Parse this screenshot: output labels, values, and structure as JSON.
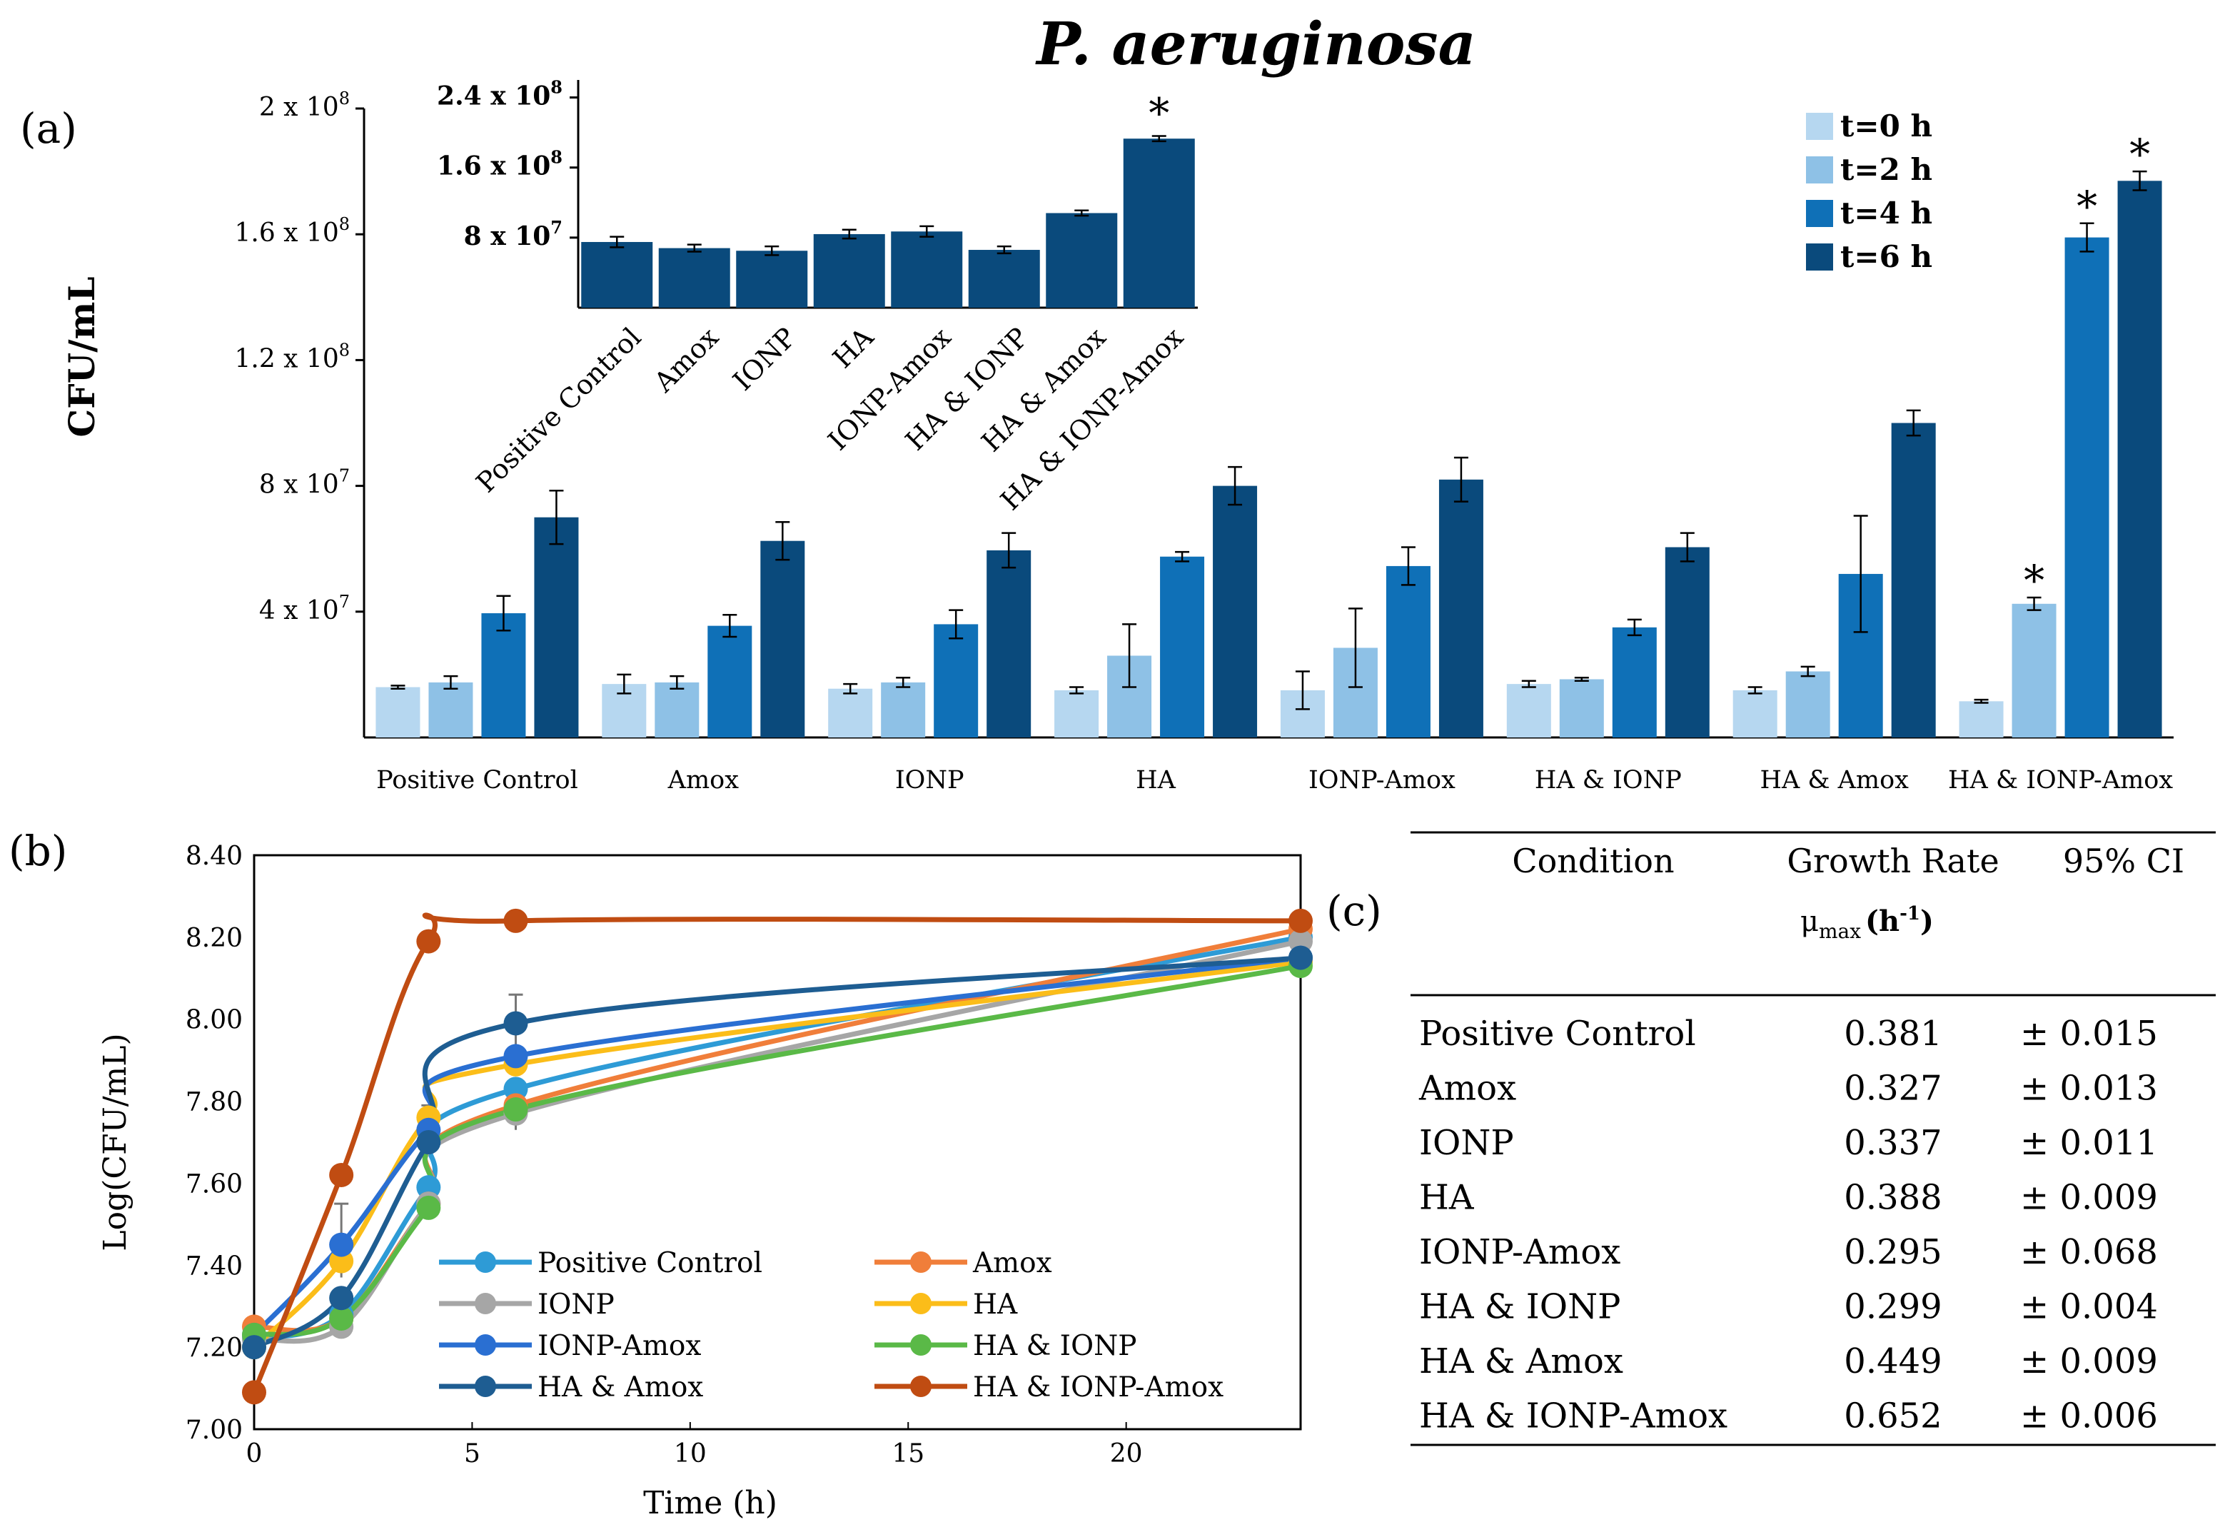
{
  "chart_data": [
    {
      "id": "a",
      "type": "bar",
      "title": "P. aeruginosa",
      "panel_label": "(a)",
      "ylabel": "CFU/mL",
      "ylim": [
        0,
        200000000
      ],
      "yticks": [
        {
          "value": 40000000,
          "mant": "4 x 10",
          "exp": "7"
        },
        {
          "value": 80000000,
          "mant": "8 x 10",
          "exp": "7"
        },
        {
          "value": 120000000,
          "mant": "1.2 x 10",
          "exp": "8"
        },
        {
          "value": 160000000,
          "mant": "1.6 x 10",
          "exp": "8"
        },
        {
          "value": 200000000,
          "mant": "2 x 10",
          "exp": "8"
        }
      ],
      "categories": [
        "Positive Control",
        "Amox",
        "IONP",
        "HA",
        "IONP-Amox",
        "HA & IONP",
        "HA & Amox",
        "HA & IONP-Amox"
      ],
      "series": [
        {
          "name": "t=0 h",
          "color": "#b6d7f0",
          "values": [
            16000000,
            17000000,
            15500000,
            15000000,
            15000000,
            17000000,
            15000000,
            11500000
          ],
          "errors": [
            500000,
            3000000,
            1500000,
            1000000,
            6000000,
            1000000,
            1000000,
            500000
          ],
          "stars": [
            false,
            false,
            false,
            false,
            false,
            false,
            false,
            false
          ]
        },
        {
          "name": "t=2 h",
          "color": "#8ec1e6",
          "values": [
            17500000,
            17500000,
            17500000,
            26000000,
            28500000,
            18500000,
            21000000,
            42500000
          ],
          "errors": [
            2000000,
            2000000,
            1500000,
            10000000,
            12500000,
            500000,
            1500000,
            2000000
          ],
          "stars": [
            false,
            false,
            false,
            false,
            false,
            false,
            false,
            true
          ]
        },
        {
          "name": "t=4 h",
          "color": "#0f70b7",
          "values": [
            39500000,
            35500000,
            36000000,
            57500000,
            54500000,
            35000000,
            52000000,
            159000000
          ],
          "errors": [
            5500000,
            3500000,
            4500000,
            1500000,
            6000000,
            2500000,
            18500000,
            4500000
          ],
          "stars": [
            false,
            false,
            false,
            false,
            false,
            false,
            false,
            true
          ]
        },
        {
          "name": "t=6 h",
          "color": "#0a4a7c",
          "values": [
            70000000,
            62500000,
            59500000,
            80000000,
            82000000,
            60500000,
            100000000,
            177000000
          ],
          "errors": [
            8500000,
            6000000,
            5500000,
            6000000,
            7000000,
            4500000,
            4000000,
            3000000
          ],
          "stars": [
            false,
            false,
            false,
            false,
            false,
            false,
            false,
            true
          ]
        }
      ],
      "legend": [
        "t=0 h",
        "t=2 h",
        "t=4 h",
        "t=6 h"
      ],
      "star_label": "*"
    },
    {
      "id": "a-inset",
      "type": "bar",
      "ylim": [
        0,
        260000000
      ],
      "yticks": [
        {
          "value": 80000000,
          "mant": "8 x 10",
          "exp": "7"
        },
        {
          "value": 160000000,
          "mant": "1.6 x 10",
          "exp": "8"
        },
        {
          "value": 240000000,
          "mant": "2.4 x 10",
          "exp": "8"
        }
      ],
      "categories": [
        "Positive Control",
        "Amox",
        "IONP",
        "HA",
        "IONP-Amox",
        "HA & IONP",
        "HA & Amox",
        "HA & IONP-Amox"
      ],
      "series": [
        {
          "name": "t=6 h",
          "color": "#0a4a7c",
          "values": [
            75000000,
            68000000,
            65000000,
            84000000,
            87000000,
            66000000,
            108000000,
            193000000
          ],
          "errors": [
            6000000,
            4000000,
            5000000,
            5000000,
            6000000,
            4000000,
            3000000,
            3000000
          ],
          "stars": [
            false,
            false,
            false,
            false,
            false,
            false,
            false,
            true
          ]
        }
      ],
      "star_label": "*"
    },
    {
      "id": "b",
      "type": "line",
      "panel_label": "(b)",
      "xlabel": "Time (h)",
      "ylabel": "Log(CFU/mL)",
      "xlim": [
        0,
        24
      ],
      "ylim": [
        7.0,
        8.4
      ],
      "xticks": [
        "0",
        "5",
        "10",
        "15",
        "20"
      ],
      "yticks": [
        "7.00",
        "7.20",
        "7.40",
        "7.60",
        "7.80",
        "8.00",
        "8.20",
        "8.40"
      ],
      "x": [
        0,
        2,
        4,
        6,
        24
      ],
      "series": [
        {
          "name": "Positive Control",
          "color": "#2e9bd6",
          "values": [
            7.22,
            7.28,
            7.59,
            7.83,
            8.2
          ]
        },
        {
          "name": "Amox",
          "color": "#f07e3a",
          "values": [
            7.25,
            7.27,
            7.55,
            7.79,
            8.22
          ]
        },
        {
          "name": "IONP",
          "color": "#a6a6a6",
          "values": [
            7.22,
            7.25,
            7.55,
            7.77,
            8.19
          ]
        },
        {
          "name": "HA",
          "color": "#fbbd19",
          "values": [
            7.2,
            7.41,
            7.76,
            7.89,
            8.14
          ]
        },
        {
          "name": "IONP-Amox",
          "color": "#2a6fd2",
          "values": [
            7.23,
            7.45,
            7.73,
            7.91,
            8.15
          ]
        },
        {
          "name": "HA & IONP",
          "color": "#5ab947",
          "values": [
            7.23,
            7.27,
            7.54,
            7.78,
            8.13
          ]
        },
        {
          "name": "HA & Amox",
          "color": "#1e5d92",
          "values": [
            7.2,
            7.32,
            7.7,
            7.99,
            8.15
          ]
        },
        {
          "name": "HA & IONP-Amox",
          "color": "#c04c12",
          "values": [
            7.09,
            7.62,
            8.19,
            8.24,
            8.24
          ]
        }
      ]
    },
    {
      "id": "c",
      "type": "table",
      "panel_label": "(c)",
      "columns": {
        "condition": "Condition",
        "rate": "Growth Rate",
        "rate_sub_mu": "μ",
        "rate_sub_max": "max",
        "rate_sub_unit": "(h",
        "rate_sub_exp": "-1",
        "rate_sub_close": ")",
        "ci": "95% CI"
      },
      "rows": [
        {
          "condition": "Positive Control",
          "rate": "0.381",
          "ci": "± 0.015"
        },
        {
          "condition": "Amox",
          "rate": "0.327",
          "ci": "± 0.013"
        },
        {
          "condition": "IONP",
          "rate": "0.337",
          "ci": "± 0.011"
        },
        {
          "condition": "HA",
          "rate": "0.388",
          "ci": "± 0.009"
        },
        {
          "condition": "IONP-Amox",
          "rate": "0.295",
          "ci": "± 0.068"
        },
        {
          "condition": "HA & IONP",
          "rate": "0.299",
          "ci": "± 0.004"
        },
        {
          "condition": "HA & Amox",
          "rate": "0.449",
          "ci": "± 0.009"
        },
        {
          "condition": "HA & IONP-Amox",
          "rate": "0.652",
          "ci": "± 0.006"
        }
      ]
    }
  ]
}
